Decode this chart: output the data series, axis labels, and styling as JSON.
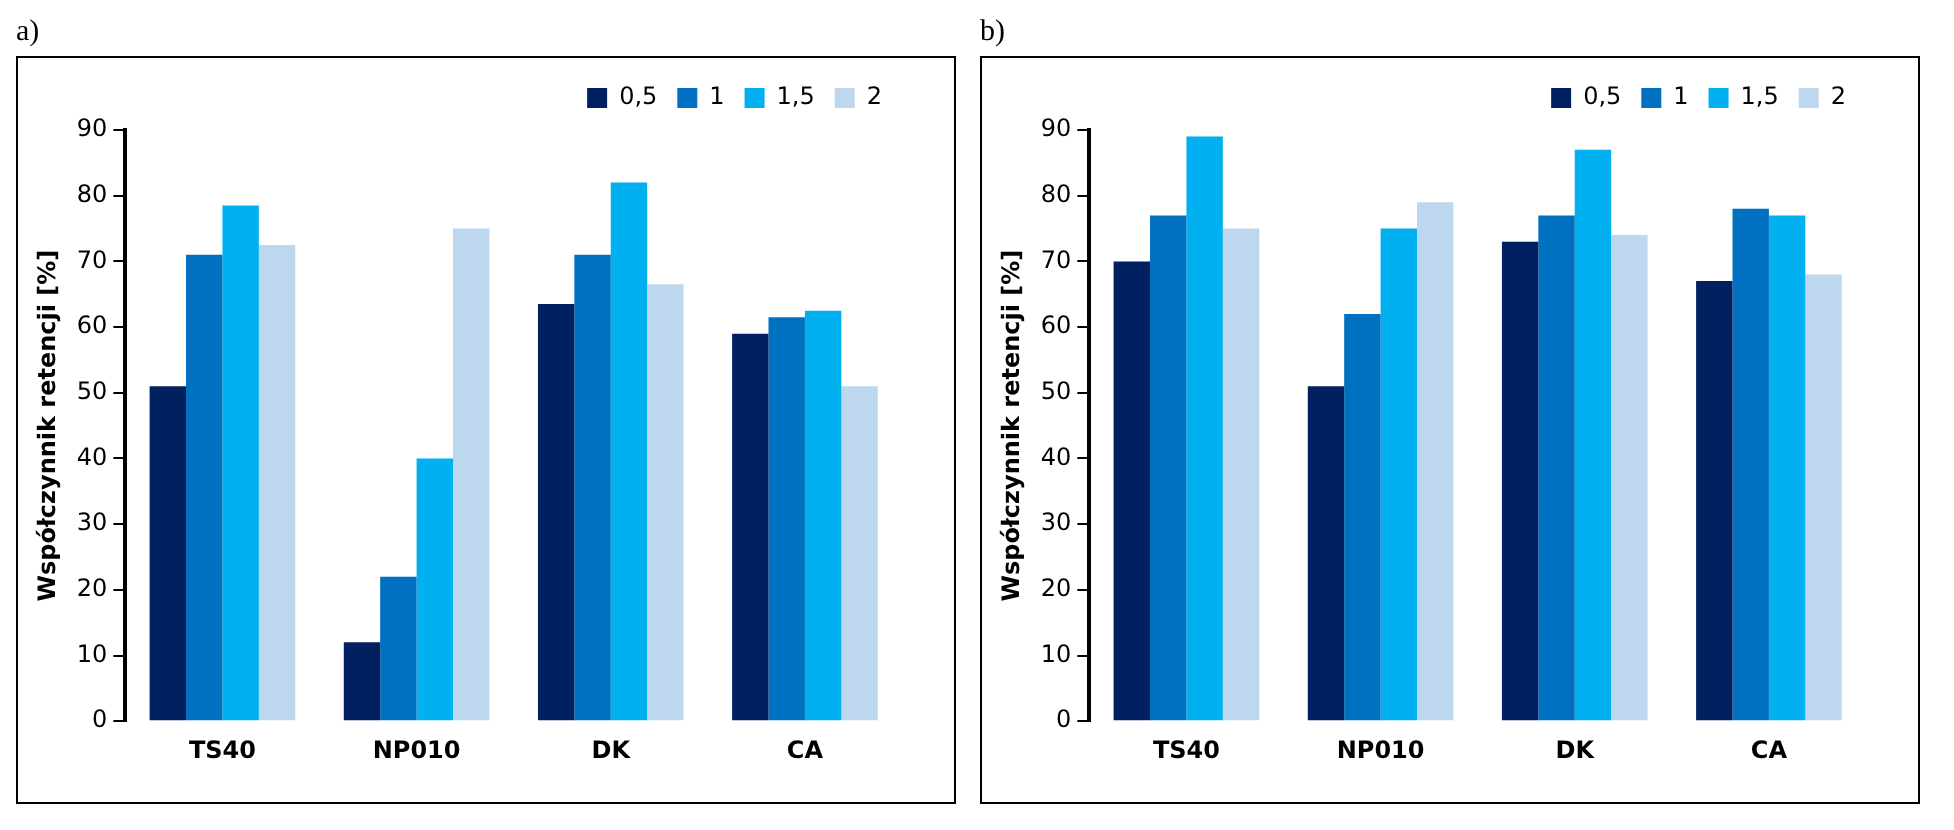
{
  "chart_data": [
    {
      "type": "bar",
      "title": "a)",
      "ylabel": "Współczynnik retencji [%]",
      "categories": [
        "TS40",
        "NP010",
        "DK",
        "CA"
      ],
      "series": [
        {
          "name": "0,5",
          "color": "#002060",
          "values": [
            51,
            12,
            63.5,
            59
          ]
        },
        {
          "name": "1",
          "color": "#0070c0",
          "values": [
            71,
            22,
            71,
            61.5
          ]
        },
        {
          "name": "1,5",
          "color": "#00b0f0",
          "values": [
            78.5,
            40,
            82,
            62.5
          ]
        },
        {
          "name": "2",
          "color": "#bdd7ee",
          "values": [
            72.5,
            75,
            66.5,
            51
          ]
        }
      ],
      "ylim": [
        0,
        90
      ],
      "yticks": [
        0,
        10,
        20,
        30,
        40,
        50,
        60,
        70,
        80,
        90
      ],
      "grid": false,
      "legend": "top right"
    },
    {
      "type": "bar",
      "title": "b)",
      "ylabel": "Współczynnik retencji [%]",
      "categories": [
        "TS40",
        "NP010",
        "DK",
        "CA"
      ],
      "series": [
        {
          "name": "0,5",
          "color": "#002060",
          "values": [
            70,
            51,
            73,
            67
          ]
        },
        {
          "name": "1",
          "color": "#0070c0",
          "values": [
            77,
            62,
            77,
            78
          ]
        },
        {
          "name": "1,5",
          "color": "#00b0f0",
          "values": [
            89,
            75,
            87,
            77
          ]
        },
        {
          "name": "2",
          "color": "#bdd7ee",
          "values": [
            75,
            79,
            74,
            68
          ]
        }
      ],
      "ylim": [
        0,
        90
      ],
      "yticks": [
        0,
        10,
        20,
        30,
        40,
        50,
        60,
        70,
        80,
        90
      ],
      "grid": false,
      "legend": "top right"
    }
  ]
}
